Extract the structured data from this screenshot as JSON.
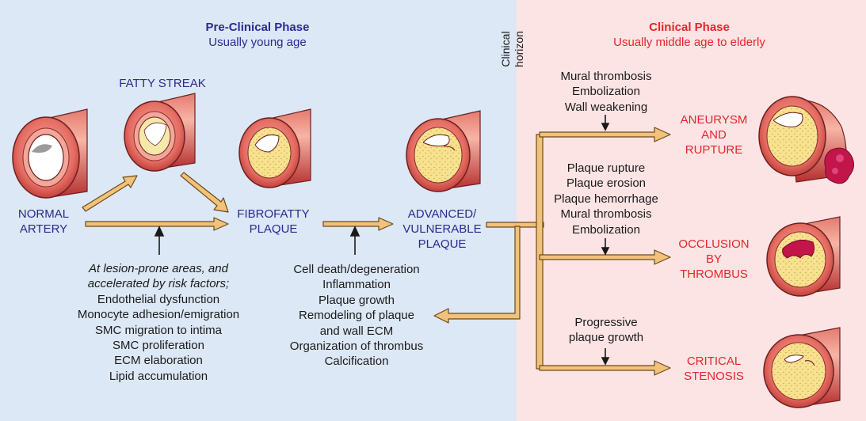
{
  "pre_clinical": {
    "title": "Pre-Clinical Phase",
    "subtitle": "Usually young age"
  },
  "clinical": {
    "title": "Clinical Phase",
    "subtitle": "Usually middle age to elderly"
  },
  "clinical_horizon": [
    "Clinical",
    "horizon"
  ],
  "stages": {
    "normal": [
      "NORMAL",
      "ARTERY"
    ],
    "fatty": "FATTY STREAK",
    "fibrofatty": [
      "FIBROFATTY",
      "PLAQUE"
    ],
    "advanced": [
      "ADVANCED/",
      "VULNERABLE",
      "PLAQUE"
    ]
  },
  "outcomes": {
    "aneurysm": [
      "ANEURYSM",
      "AND",
      "RUPTURE"
    ],
    "occlusion": [
      "OCCLUSION",
      "BY",
      "THROMBUS"
    ],
    "stenosis": [
      "CRITICAL",
      "STENOSIS"
    ]
  },
  "risk_factors": {
    "intro": [
      "At lesion-prone areas, and",
      "accelerated by risk factors;"
    ],
    "items": [
      "Endothelial dysfunction",
      "Monocyte adhesion/emigration",
      "SMC migration to intima",
      "SMC proliferation",
      "ECM elaboration",
      "Lipid accumulation"
    ]
  },
  "progression_factors": [
    "Cell death/degeneration",
    "Inflammation",
    "Plaque growth",
    "Remodeling of plaque",
    "and wall ECM",
    "Organization of thrombus",
    "Calcification"
  ],
  "aneurysm_causes": [
    "Mural thrombosis",
    "Embolization",
    "Wall weakening"
  ],
  "occlusion_causes": [
    "Plaque rupture",
    "Plaque erosion",
    "Plaque hemorrhage",
    "Mural thrombosis",
    "Embolization"
  ],
  "stenosis_causes": [
    "Progressive",
    "plaque growth"
  ],
  "colors": {
    "pre_bg": "#dce8f5",
    "clinical_bg": "#fde4e4",
    "arrow": "#f2c27a",
    "arrow_outline": "#6b4a1a",
    "vessel": "#cf4a4a",
    "lumen": "#ffffff",
    "plaque": "#f4e08a",
    "thrombus": "#c2154a",
    "stage_label": "#2a2a8f",
    "outcome_label": "#e3262c"
  }
}
